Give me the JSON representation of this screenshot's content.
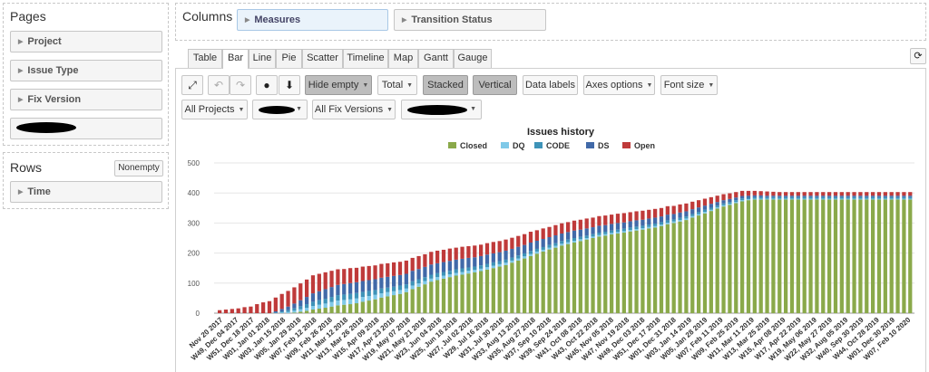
{
  "pages": {
    "title": "Pages",
    "fields": [
      "Project",
      "Issue Type",
      "Fix Version"
    ]
  },
  "rows": {
    "title": "Rows",
    "nonempty_label": "Nonempty",
    "fields": [
      "Time"
    ]
  },
  "columns": {
    "title": "Columns",
    "fields": [
      "Measures",
      "Transition Status"
    ]
  },
  "tabs": [
    "Table",
    "Bar",
    "Line",
    "Pie",
    "Scatter",
    "Timeline",
    "Map",
    "Gantt",
    "Gauge"
  ],
  "active_tab": "Bar",
  "toolbar": {
    "hide_empty": "Hide empty",
    "total": "Total",
    "stacked": "Stacked",
    "vertical": "Vertical",
    "data_labels": "Data labels",
    "axes_options": "Axes options",
    "font_size": "Font size"
  },
  "filters": {
    "all_projects": "All Projects",
    "all_fix_versions": "All Fix Versions"
  },
  "colors": {
    "Closed": "#8aa94a",
    "DQ": "#7fc9e8",
    "CODE": "#3e93b8",
    "DS": "#4169a8",
    "Open": "#bf3a3a"
  },
  "chart_data": {
    "type": "bar",
    "stacked": true,
    "title": "Issues history",
    "legend_position": "top-center",
    "ylim": [
      0,
      500
    ],
    "yticks": [
      0,
      100,
      200,
      300,
      400,
      500
    ],
    "grid": true,
    "x_labels": [
      "Nov 20 2017",
      "W49, Dec 04 2017",
      "W51, Dec 18 2017",
      "W01, Jan 01 2018",
      "W03, Jan 15 2018",
      "W05, Jan 29 2018",
      "W07, Feb 12 2018",
      "W09, Feb 26 2018",
      "W11, Mar 12 2018",
      "W13, Mar 26 2018",
      "W15, Apr 09 2018",
      "W17, Apr 23 2018",
      "W19, May 07 2018",
      "W21, May 21 2018",
      "W23, Jun 04 2018",
      "W25, Jun 18 2018",
      "W27, Jul 02 2018",
      "W29, Jul 16 2018",
      "W31, Jul 30 2018",
      "W33, Aug 13 2018",
      "W35, Aug 27 2018",
      "W37, Sep 10 2018",
      "W39, Sep 24 2018",
      "W41, Oct 08 2018",
      "W43, Oct 22 2018",
      "W45, Nov 05 2018",
      "W47, Nov 19 2018",
      "W49, Dec 03 2018",
      "W51, Dec 17 2018",
      "W01, Dec 31 2018",
      "W03, Jan 14 2019",
      "W05, Jan 28 2019",
      "W07, Feb 11 2019",
      "W09, Feb 25 2019",
      "W11, Mar 11 2019",
      "W13, Mar 25 2019",
      "W15, Apr 08 2019",
      "W17, Apr 22 2019",
      "W19, May 06 2019",
      "W22, May 27 2019",
      "W32, Aug 05 2019",
      "W40, Sep 30 2019",
      "W44, Oct 28 2019",
      "W01, Dec 30 2019",
      "W07, Feb 10 2020"
    ],
    "series": [
      {
        "name": "Closed",
        "values": [
          0,
          0,
          0,
          0,
          0,
          0,
          0,
          0,
          0,
          0,
          0,
          0,
          2,
          5,
          8,
          12,
          15,
          18,
          22,
          26,
          28,
          30,
          33,
          38,
          42,
          46,
          52,
          56,
          60,
          64,
          70,
          80,
          88,
          96,
          105,
          110,
          115,
          120,
          125,
          128,
          132,
          136,
          140,
          145,
          150,
          155,
          160,
          168,
          175,
          182,
          190,
          198,
          205,
          212,
          218,
          225,
          230,
          235,
          240,
          245,
          250,
          255,
          258,
          262,
          265,
          268,
          272,
          275,
          278,
          282,
          285,
          290,
          296,
          300,
          305,
          310,
          318,
          325,
          332,
          340,
          348,
          355,
          360,
          366,
          372,
          376,
          378,
          378,
          378,
          378,
          378,
          378,
          378,
          378,
          378,
          378,
          378,
          378,
          378,
          378,
          378,
          378,
          378,
          378,
          378,
          378,
          378,
          378,
          378,
          378,
          378,
          378
        ]
      },
      {
        "name": "DQ",
        "values": [
          0,
          0,
          0,
          0,
          0,
          0,
          0,
          0,
          0,
          0,
          2,
          4,
          6,
          8,
          10,
          12,
          13,
          14,
          15,
          16,
          16,
          16,
          16,
          16,
          15,
          15,
          14,
          14,
          13,
          13,
          12,
          12,
          11,
          11,
          10,
          10,
          10,
          9,
          9,
          9,
          9,
          8,
          8,
          8,
          8,
          8,
          8,
          7,
          7,
          7,
          7,
          7,
          6,
          6,
          6,
          6,
          6,
          6,
          6,
          5,
          5,
          5,
          5,
          5,
          5,
          5,
          5,
          5,
          5,
          5,
          5,
          5,
          5,
          5,
          5,
          5,
          5,
          5,
          5,
          4,
          4,
          4,
          4,
          4,
          4,
          3,
          3,
          3,
          3,
          3,
          3,
          3,
          3,
          3,
          3,
          3,
          3,
          3,
          3,
          3,
          3,
          3,
          3,
          3,
          3,
          3,
          3,
          3,
          3,
          3,
          3,
          3
        ]
      },
      {
        "name": "CODE",
        "values": [
          0,
          0,
          0,
          0,
          0,
          0,
          0,
          0,
          0,
          2,
          4,
          6,
          8,
          10,
          12,
          14,
          15,
          16,
          17,
          18,
          18,
          18,
          18,
          17,
          17,
          16,
          16,
          15,
          15,
          15,
          14,
          14,
          14,
          13,
          13,
          13,
          12,
          12,
          12,
          12,
          11,
          11,
          11,
          11,
          11,
          10,
          10,
          10,
          10,
          10,
          10,
          9,
          9,
          9,
          9,
          9,
          9,
          9,
          8,
          8,
          8,
          8,
          8,
          8,
          8,
          8,
          8,
          8,
          8,
          8,
          8,
          8,
          8,
          7,
          7,
          7,
          7,
          7,
          7,
          7,
          6,
          6,
          6,
          6,
          6,
          5,
          5,
          5,
          5,
          5,
          5,
          5,
          5,
          5,
          5,
          5,
          5,
          5,
          5,
          5,
          5,
          5,
          5,
          5,
          5,
          5,
          5,
          5,
          5,
          5,
          5,
          5
        ]
      },
      {
        "name": "DS",
        "values": [
          0,
          0,
          0,
          0,
          0,
          0,
          0,
          0,
          0,
          4,
          8,
          12,
          16,
          20,
          24,
          28,
          30,
          32,
          33,
          34,
          35,
          36,
          36,
          36,
          36,
          36,
          36,
          36,
          36,
          35,
          35,
          35,
          34,
          34,
          34,
          33,
          33,
          33,
          32,
          32,
          32,
          31,
          31,
          31,
          30,
          30,
          30,
          29,
          29,
          28,
          28,
          27,
          27,
          26,
          26,
          25,
          25,
          25,
          24,
          24,
          23,
          23,
          22,
          22,
          22,
          21,
          21,
          21,
          20,
          20,
          20,
          19,
          19,
          18,
          18,
          17,
          16,
          15,
          14,
          13,
          12,
          11,
          10,
          9,
          8,
          7,
          6,
          6,
          5,
          5,
          5,
          5,
          5,
          5,
          5,
          5,
          5,
          5,
          5,
          5,
          5,
          5,
          5,
          5,
          5,
          5,
          5,
          5,
          5,
          5,
          5,
          5
        ]
      },
      {
        "name": "Open",
        "values": [
          10,
          12,
          14,
          16,
          20,
          22,
          30,
          36,
          40,
          46,
          50,
          52,
          54,
          56,
          58,
          60,
          58,
          56,
          54,
          52,
          50,
          50,
          48,
          48,
          47,
          46,
          46,
          45,
          45,
          44,
          44,
          43,
          43,
          42,
          42,
          42,
          41,
          41,
          40,
          40,
          39,
          39,
          38,
          38,
          38,
          37,
          37,
          37,
          36,
          36,
          36,
          35,
          35,
          34,
          34,
          34,
          33,
          33,
          33,
          33,
          32,
          32,
          32,
          31,
          31,
          31,
          30,
          30,
          30,
          29,
          29,
          28,
          28,
          27,
          27,
          26,
          25,
          24,
          23,
          22,
          21,
          20,
          19,
          18,
          17,
          16,
          15,
          14,
          14,
          13,
          12,
          12,
          12,
          12,
          12,
          12,
          12,
          12,
          12,
          12,
          12,
          12,
          12,
          12,
          12,
          12,
          12,
          12,
          12,
          12,
          12,
          12
        ]
      }
    ]
  }
}
